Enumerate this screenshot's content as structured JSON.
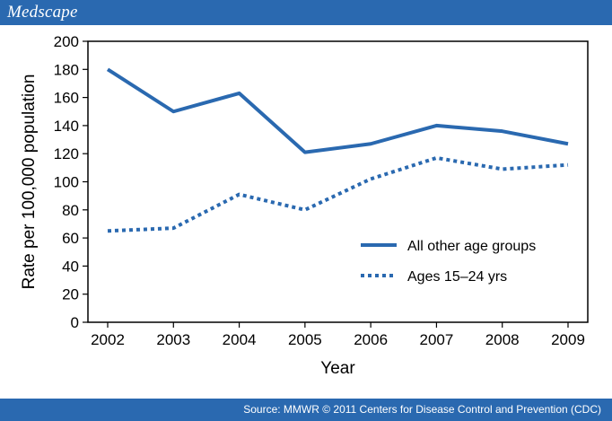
{
  "header": {
    "brand": "Medscape"
  },
  "footer": {
    "source": "Source: MMWR © 2011 Centers for Disease Control and Prevention (CDC)"
  },
  "colors": {
    "accent": "#2a69b0",
    "series": "#2a69b0"
  },
  "chart_data": {
    "type": "line",
    "title": "",
    "xlabel": "Year",
    "ylabel": "Rate per 100,000 population",
    "x": [
      2002,
      2003,
      2004,
      2005,
      2006,
      2007,
      2008,
      2009
    ],
    "ylim": [
      0,
      200
    ],
    "yticks": [
      0,
      20,
      40,
      60,
      80,
      100,
      120,
      140,
      160,
      180,
      200
    ],
    "grid": false,
    "legend_position": "lower-right",
    "series": [
      {
        "name": "All other age groups",
        "style": "solid",
        "values": [
          180,
          150,
          163,
          121,
          127,
          140,
          136,
          127
        ]
      },
      {
        "name": "Ages 15–24 yrs",
        "style": "dotted",
        "values": [
          65,
          67,
          91,
          80,
          102,
          117,
          109,
          112
        ]
      }
    ]
  }
}
